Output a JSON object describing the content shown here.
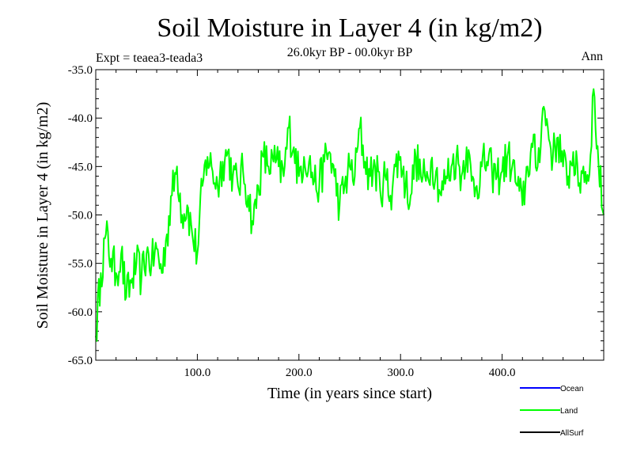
{
  "chart_data": {
    "type": "line",
    "title": "Soil Moisture in Layer 4 (in kg/m2)",
    "subtitle_left": "Expt = teaea3-teada3",
    "subtitle_center": "26.0kyr BP - 00.0kyr BP",
    "subtitle_right": "Ann",
    "xlabel": "Time (in years since start)",
    "ylabel": "Soil Moisture in Layer 4 (in kg/m2)",
    "xlim": [
      0,
      500
    ],
    "ylim": [
      -65,
      -35
    ],
    "x_ticks": [
      {
        "value": 100,
        "label": "100.0"
      },
      {
        "value": 200,
        "label": "200.0"
      },
      {
        "value": 300,
        "label": "300.0"
      },
      {
        "value": 400,
        "label": "400.0"
      }
    ],
    "y_ticks": [
      {
        "value": -35,
        "label": "-35.0"
      },
      {
        "value": -40,
        "label": "-40.0"
      },
      {
        "value": -45,
        "label": "-45.0"
      },
      {
        "value": -50,
        "label": "-50.0"
      },
      {
        "value": -55,
        "label": "-55.0"
      },
      {
        "value": -60,
        "label": "-60.0"
      },
      {
        "value": -65,
        "label": "-65.0"
      }
    ],
    "legend": [
      {
        "name": "Ocean",
        "color": "#0000ff"
      },
      {
        "name": "Land",
        "color": "#00ff00"
      },
      {
        "name": "AllSurf",
        "color": "#000000"
      }
    ],
    "series": [
      {
        "name": "Land",
        "color": "#00ff00",
        "x": [
          0,
          5,
          10,
          15,
          20,
          25,
          30,
          35,
          40,
          45,
          50,
          55,
          60,
          65,
          70,
          75,
          80,
          85,
          90,
          95,
          100,
          105,
          110,
          115,
          120,
          125,
          130,
          135,
          140,
          145,
          150,
          155,
          160,
          165,
          170,
          175,
          180,
          185,
          190,
          195,
          200,
          205,
          210,
          215,
          220,
          225,
          230,
          235,
          240,
          245,
          250,
          255,
          260,
          265,
          270,
          275,
          280,
          285,
          290,
          295,
          300,
          305,
          310,
          315,
          320,
          325,
          330,
          335,
          340,
          345,
          350,
          355,
          360,
          365,
          370,
          375,
          380,
          385,
          390,
          395,
          400,
          405,
          410,
          415,
          420,
          425,
          430,
          435,
          440,
          445,
          450,
          455,
          460,
          465,
          470,
          475,
          480,
          485,
          490,
          495,
          500
        ],
        "values": [
          -62.5,
          -56.0,
          -52.0,
          -54.5,
          -56.0,
          -54.0,
          -58.5,
          -57.0,
          -55.0,
          -56.5,
          -54.0,
          -55.0,
          -53.5,
          -56.0,
          -52.0,
          -48.0,
          -45.0,
          -50.0,
          -49.0,
          -52.0,
          -54.0,
          -47.0,
          -44.0,
          -45.5,
          -47.0,
          -44.5,
          -43.5,
          -46.0,
          -47.0,
          -45.5,
          -48.0,
          -51.0,
          -47.0,
          -44.0,
          -45.0,
          -44.5,
          -45.0,
          -46.0,
          -41.0,
          -43.0,
          -46.0,
          -44.0,
          -44.5,
          -46.5,
          -47.0,
          -44.5,
          -43.5,
          -46.0,
          -49.0,
          -47.0,
          -45.0,
          -46.0,
          -41.0,
          -44.5,
          -46.0,
          -45.0,
          -47.5,
          -46.0,
          -48.0,
          -45.0,
          -44.0,
          -47.0,
          -48.0,
          -44.0,
          -46.0,
          -46.5,
          -44.5,
          -45.5,
          -48.0,
          -46.0,
          -45.0,
          -44.0,
          -46.0,
          -43.0,
          -46.5,
          -47.0,
          -45.0,
          -44.5,
          -45.5,
          -46.0,
          -45.5,
          -44.0,
          -45.0,
          -47.0,
          -49.0,
          -45.0,
          -43.0,
          -45.0,
          -39.0,
          -41.0,
          -44.0,
          -42.0,
          -45.0,
          -46.0,
          -43.5,
          -47.0,
          -45.0,
          -46.5,
          -37.0,
          -45.0,
          -50.0
        ]
      }
    ]
  }
}
